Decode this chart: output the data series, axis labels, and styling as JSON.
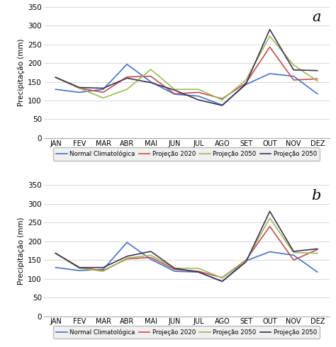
{
  "months": [
    "JAN",
    "FEV",
    "MAR",
    "ABR",
    "MAI",
    "JUN",
    "JUL",
    "AGO",
    "SET",
    "OUT",
    "NOV",
    "DEZ"
  ],
  "chart_a": {
    "normal": [
      130,
      122,
      130,
      197,
      150,
      117,
      112,
      88,
      143,
      172,
      165,
      118
    ],
    "proj2020": [
      162,
      133,
      122,
      163,
      165,
      118,
      122,
      105,
      147,
      243,
      155,
      158
    ],
    "proj2050_green": [
      162,
      133,
      107,
      130,
      183,
      130,
      130,
      102,
      155,
      272,
      195,
      152
    ],
    "proj2050_purple": [
      162,
      135,
      133,
      160,
      148,
      128,
      102,
      87,
      145,
      290,
      182,
      180
    ]
  },
  "chart_b": {
    "normal": [
      130,
      122,
      125,
      197,
      152,
      120,
      118,
      93,
      148,
      172,
      163,
      118
    ],
    "proj2020": [
      168,
      130,
      122,
      153,
      157,
      125,
      120,
      103,
      150,
      240,
      150,
      178
    ],
    "proj2050_green": [
      168,
      128,
      120,
      155,
      163,
      128,
      128,
      102,
      148,
      262,
      170,
      168
    ],
    "proj2050_purple": [
      168,
      130,
      130,
      160,
      173,
      128,
      118,
      93,
      145,
      280,
      173,
      180
    ]
  },
  "colors": {
    "normal": "#4472C4",
    "proj2020": "#C0504D",
    "proj2050_green": "#9BBB59",
    "proj2050_purple": "#403152"
  },
  "legend_labels": [
    "Normal Climatológica",
    "Projeção 2020",
    "Projeção 2050",
    "Projeção 2050"
  ],
  "ylabel": "Precipitação (mm)",
  "ylim": [
    0,
    350
  ],
  "yticks": [
    0,
    50,
    100,
    150,
    200,
    250,
    300,
    350
  ],
  "label_a": "a",
  "label_b": "b",
  "bg_color": "#ffffff",
  "plot_bg": "#ffffff",
  "legend_box_color": "#e8e8e8",
  "grid_color": "#d0d0d0"
}
